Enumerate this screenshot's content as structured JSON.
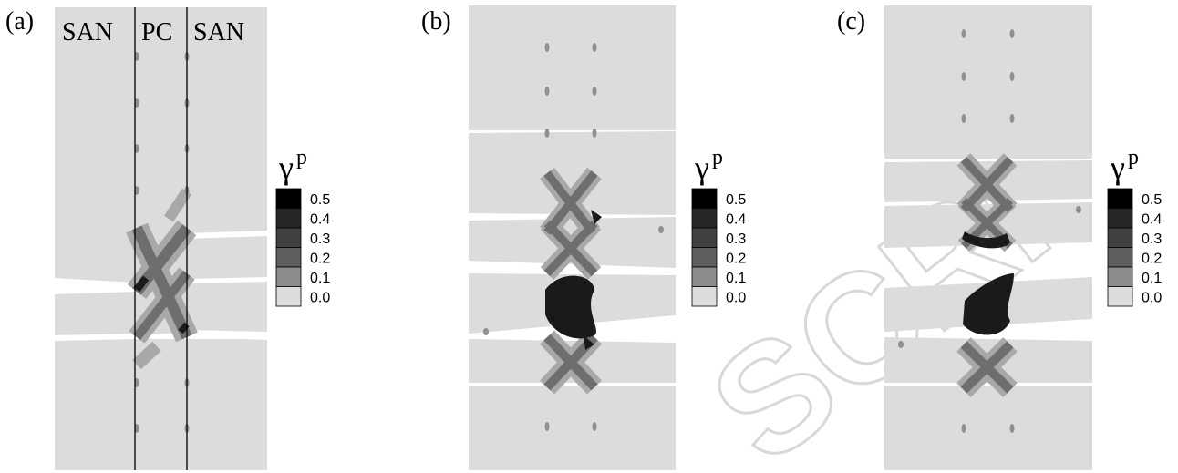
{
  "panels": [
    {
      "label": "(a)",
      "regions": [
        "SAN",
        "PC",
        "SAN"
      ]
    },
    {
      "label": "(b)"
    },
    {
      "label": "(c)"
    }
  ],
  "colorbar": {
    "symbol": "γ",
    "superscript": "p",
    "levels": [
      {
        "value": "0.5",
        "color": "#000000"
      },
      {
        "value": "0.4",
        "color": "#262626"
      },
      {
        "value": "0.3",
        "color": "#404040"
      },
      {
        "value": "0.2",
        "color": "#5e5e5e"
      },
      {
        "value": "0.1",
        "color": "#8c8c8c"
      },
      {
        "value": "0.0",
        "color": "#dcdcdc"
      }
    ]
  },
  "colors": {
    "specimen": "#dcdcdc",
    "strain_low": "#a8a8a8",
    "strain_mid": "#6e6e6e",
    "strain_high": "#1a1a1a"
  },
  "watermark": "SCRI"
}
